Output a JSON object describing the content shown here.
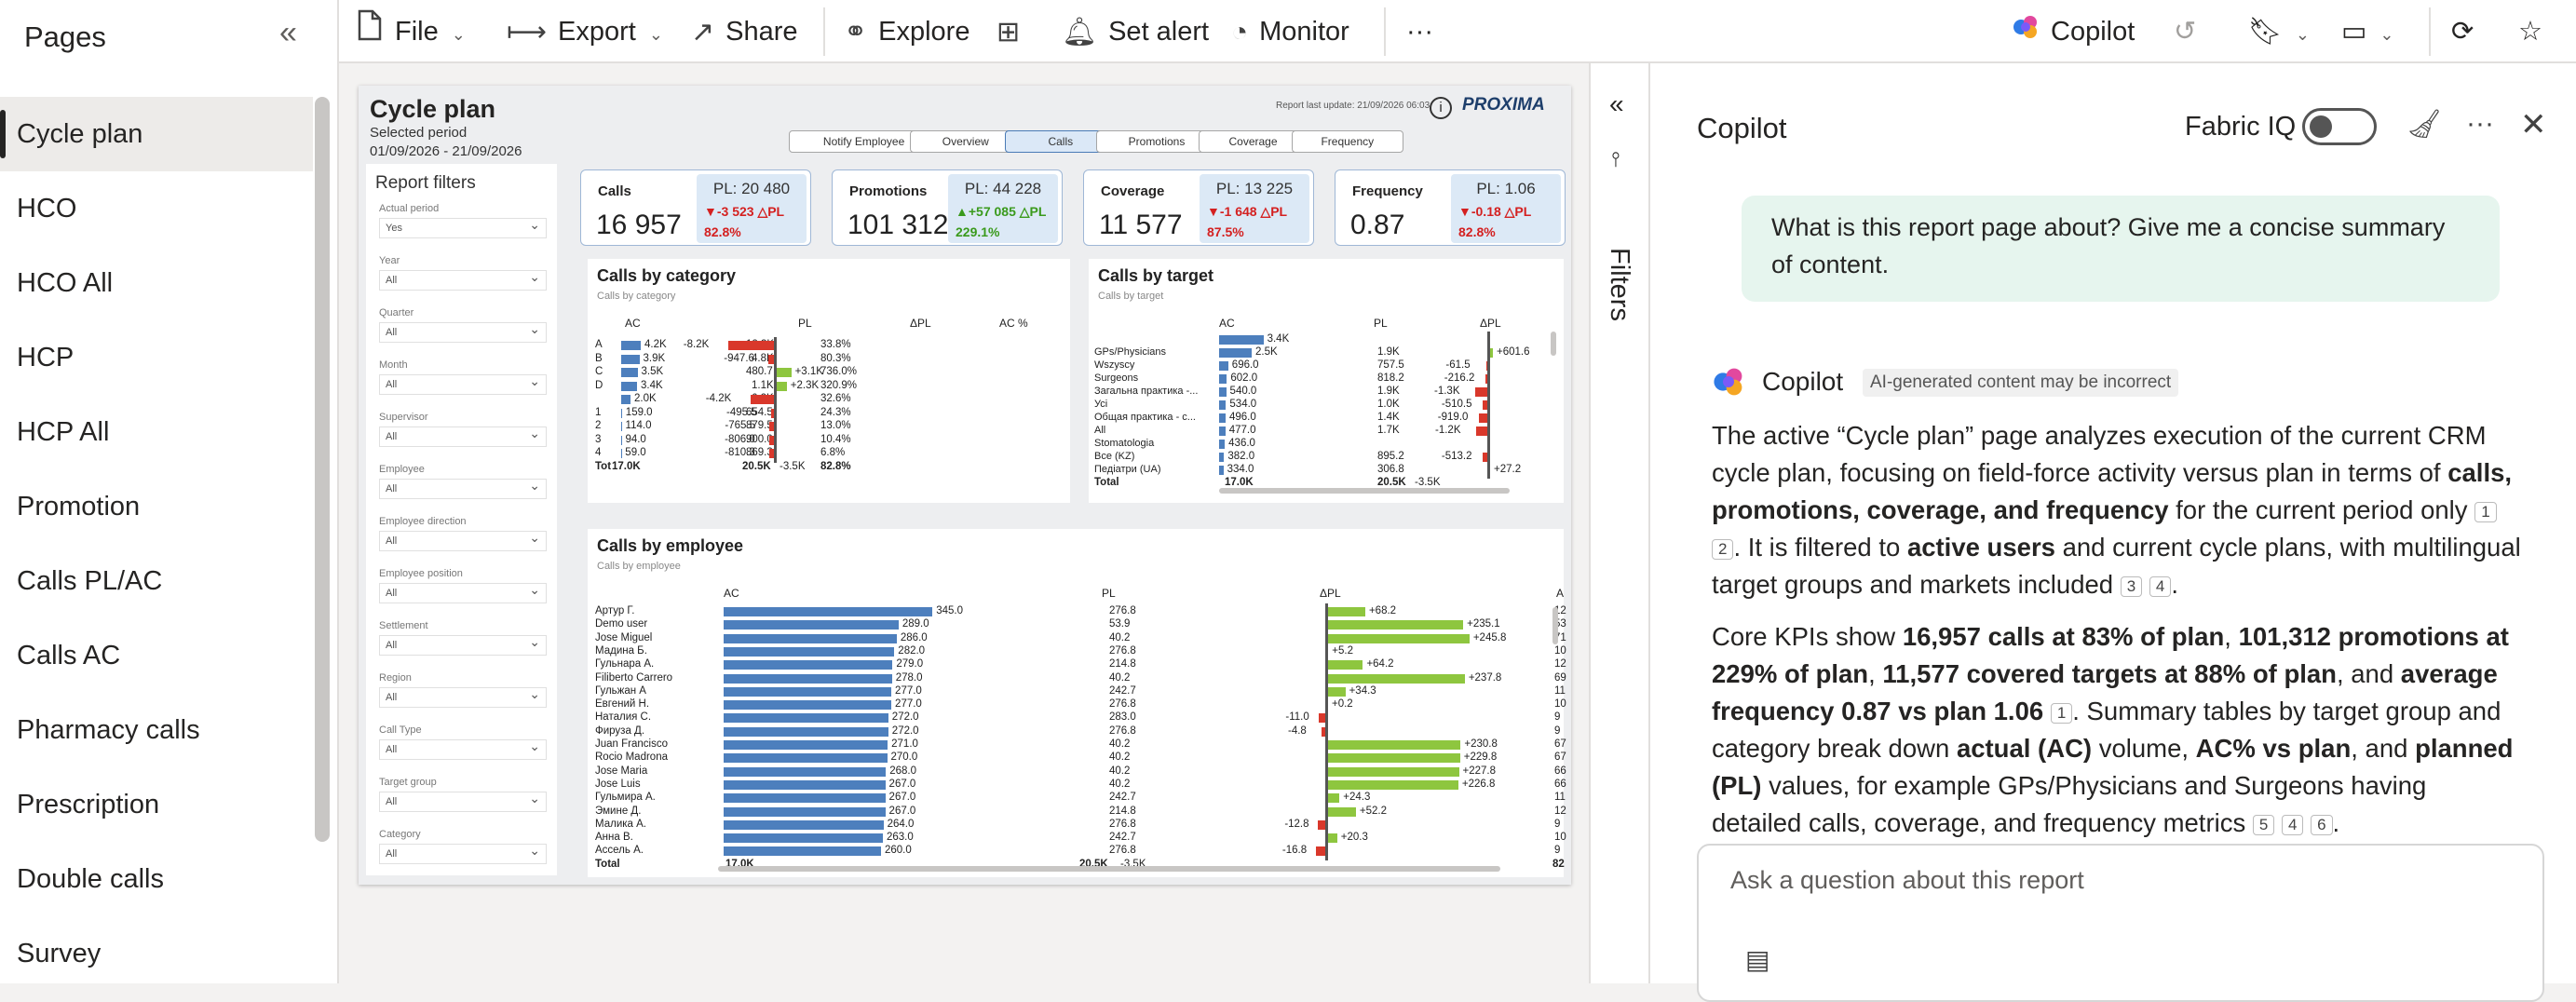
{
  "pages": {
    "title": "Pages",
    "items": [
      "Cycle plan",
      "HCO",
      "HCO All",
      "HCP",
      "HCP All",
      "Promotion",
      "Calls PL/AC",
      "Calls AC",
      "Pharmacy calls",
      "Prescription",
      "Double calls",
      "Survey"
    ]
  },
  "toolbar": {
    "file": "File",
    "export": "Export",
    "share": "Share",
    "explore": "Explore",
    "set_alert": "Set alert",
    "monitor": "Monitor",
    "copilot": "Copilot",
    "more": "···"
  },
  "report": {
    "title": "Cycle plan",
    "selected_period_label": "Selected period",
    "period": "01/09/2026 - 21/09/2026",
    "last_update": "Report last update: 21/09/2026 06:03",
    "logo": "PROXIMA",
    "nav": [
      "Notify Employee",
      "Overview",
      "Calls",
      "Promotions",
      "Coverage",
      "Frequency"
    ],
    "kpis": [
      {
        "name": "Calls",
        "value": "16 957",
        "pl": "PL: 20 480",
        "delta": "▼-3 523 △PL",
        "pct": "82.8%",
        "dir": "neg"
      },
      {
        "name": "Promotions",
        "value": "101 312",
        "pl": "PL: 44 228",
        "delta": "▲+57 085 △PL",
        "pct": "229.1%",
        "dir": "pos"
      },
      {
        "name": "Coverage",
        "value": "11 577",
        "pl": "PL: 13 225",
        "delta": "▼-1 648 △PL",
        "pct": "87.5%",
        "dir": "neg"
      },
      {
        "name": "Frequency",
        "value": "0.87",
        "pl": "PL: 1.06",
        "delta": "▼-0.18 △PL",
        "pct": "82.8%",
        "dir": "neg"
      }
    ],
    "filters": {
      "title": "Report filters",
      "items": [
        {
          "label": "Actual period",
          "value": "Yes"
        },
        {
          "label": "Year",
          "value": "All"
        },
        {
          "label": "Quarter",
          "value": "All"
        },
        {
          "label": "Month",
          "value": "All"
        },
        {
          "label": "Supervisor",
          "value": "All"
        },
        {
          "label": "Employee",
          "value": "All"
        },
        {
          "label": "Employee direction",
          "value": "All"
        },
        {
          "label": "Employee position",
          "value": "All"
        },
        {
          "label": "Settlement",
          "value": "All"
        },
        {
          "label": "Region",
          "value": "All"
        },
        {
          "label": "Call Type",
          "value": "All"
        },
        {
          "label": "Target group",
          "value": "All"
        },
        {
          "label": "Category",
          "value": "All"
        }
      ]
    },
    "by_category": {
      "title": "Calls by category",
      "subtitle": "Calls by category",
      "headers": [
        "AC",
        "PL",
        "ΔPL",
        "AC %"
      ],
      "rows": [
        {
          "label": "A",
          "ac": "4.2K",
          "acv": 4.2,
          "pl": "12.3K",
          "dpl": "-8.2K",
          "dv": -8.2,
          "pct": "33.8%"
        },
        {
          "label": "B",
          "ac": "3.9K",
          "acv": 3.9,
          "pl": "4.8K",
          "dpl": "-947.6",
          "dv": -0.95,
          "pct": "80.3%"
        },
        {
          "label": "C",
          "ac": "3.5K",
          "acv": 3.5,
          "pl": "480.7",
          "dpl": "+3.1K",
          "dv": 3.1,
          "pct": "736.0%"
        },
        {
          "label": "D",
          "ac": "3.4K",
          "acv": 3.4,
          "pl": "1.1K",
          "dpl": "+2.3K",
          "dv": 2.3,
          "pct": "320.9%"
        },
        {
          "label": "",
          "ac": "2.0K",
          "acv": 2.0,
          "pl": "6.2K",
          "dpl": "-4.2K",
          "dv": -4.2,
          "pct": "32.6%"
        },
        {
          "label": "1",
          "ac": "159.0",
          "acv": 0.16,
          "pl": "654.5",
          "dpl": "-495.5",
          "dv": -0.5,
          "pct": "24.3%"
        },
        {
          "label": "2",
          "ac": "114.0",
          "acv": 0.11,
          "pl": "879.5",
          "dpl": "-765.5",
          "dv": -0.77,
          "pct": "13.0%"
        },
        {
          "label": "3",
          "ac": "94.0",
          "acv": 0.09,
          "pl": "900.0",
          "dpl": "-806.0",
          "dv": -0.81,
          "pct": "10.4%"
        },
        {
          "label": "4",
          "ac": "59.0",
          "acv": 0.06,
          "pl": "869.3",
          "dpl": "-810.3",
          "dv": -0.81,
          "pct": "6.8%"
        }
      ],
      "total": {
        "label": "Tot",
        "ac": "17.0K",
        "pl": "20.5K",
        "dpl": "-3.5K",
        "pct": "82.8%"
      }
    },
    "by_target": {
      "title": "Calls by target",
      "subtitle": "Calls by target",
      "headers": [
        "AC",
        "PL",
        "ΔPL"
      ],
      "rows": [
        {
          "label": "",
          "ac": "3.4K",
          "acv": 3.4,
          "pl": "",
          "dpl": "",
          "dv": 0
        },
        {
          "label": "GPs/Physicians",
          "ac": "2.5K",
          "acv": 2.5,
          "pl": "1.9K",
          "dpl": "+601.6",
          "dv": 0.6
        },
        {
          "label": "Wszyscy",
          "ac": "696.0",
          "acv": 0.7,
          "pl": "757.5",
          "dpl": "-61.5",
          "dv": -0.06
        },
        {
          "label": "Surgeons",
          "ac": "602.0",
          "acv": 0.6,
          "pl": "818.2",
          "dpl": "-216.2",
          "dv": -0.22
        },
        {
          "label": "Загальна практика -...",
          "ac": "540.0",
          "acv": 0.54,
          "pl": "1.9K",
          "dpl": "-1.3K",
          "dv": -1.3
        },
        {
          "label": "Усі",
          "ac": "534.0",
          "acv": 0.53,
          "pl": "1.0K",
          "dpl": "-510.5",
          "dv": -0.51
        },
        {
          "label": "Общая практика - с...",
          "ac": "496.0",
          "acv": 0.5,
          "pl": "1.4K",
          "dpl": "-919.0",
          "dv": -0.92
        },
        {
          "label": "All",
          "ac": "477.0",
          "acv": 0.48,
          "pl": "1.7K",
          "dpl": "-1.2K",
          "dv": -1.2
        },
        {
          "label": "Stomatologia",
          "ac": "436.0",
          "acv": 0.44,
          "pl": "",
          "dpl": "",
          "dv": 0
        },
        {
          "label": "Все (KZ)",
          "ac": "382.0",
          "acv": 0.38,
          "pl": "895.2",
          "dpl": "-513.2",
          "dv": -0.51
        },
        {
          "label": "Педіатри (UA)",
          "ac": "334.0",
          "acv": 0.33,
          "pl": "306.8",
          "dpl": "+27.2",
          "dv": 0.03
        }
      ],
      "total": {
        "label": "Total",
        "ac": "17.0K",
        "pl": "20.5K",
        "dpl": "-3.5K"
      }
    },
    "by_employee": {
      "title": "Calls by employee",
      "subtitle": "Calls by employee",
      "headers": [
        "AC",
        "PL",
        "ΔPL",
        "A"
      ],
      "rows": [
        {
          "label": "Артур Г.",
          "ac": "345.0",
          "acv": 345,
          "pl": "276.8",
          "dpl": "+68.2",
          "dv": 68.2,
          "tail": "12"
        },
        {
          "label": "Demo user",
          "ac": "289.0",
          "acv": 289,
          "pl": "53.9",
          "dpl": "+235.1",
          "dv": 235.1,
          "tail": "53"
        },
        {
          "label": "Jose Miguel",
          "ac": "286.0",
          "acv": 286,
          "pl": "40.2",
          "dpl": "+245.8",
          "dv": 245.8,
          "tail": "71"
        },
        {
          "label": "Мадина Б.",
          "ac": "282.0",
          "acv": 282,
          "pl": "276.8",
          "dpl": "+5.2",
          "dv": 5.2,
          "tail": "10"
        },
        {
          "label": "Гульнара А.",
          "ac": "279.0",
          "acv": 279,
          "pl": "214.8",
          "dpl": "+64.2",
          "dv": 64.2,
          "tail": "12"
        },
        {
          "label": "Filiberto Carrero",
          "ac": "278.0",
          "acv": 278,
          "pl": "40.2",
          "dpl": "+237.8",
          "dv": 237.8,
          "tail": "69"
        },
        {
          "label": "Гульжан А",
          "ac": "277.0",
          "acv": 277,
          "pl": "242.7",
          "dpl": "+34.3",
          "dv": 34.3,
          "tail": "11"
        },
        {
          "label": "Евгений Н.",
          "ac": "277.0",
          "acv": 277,
          "pl": "276.8",
          "dpl": "+0.2",
          "dv": 0.2,
          "tail": "10"
        },
        {
          "label": "Наталия С.",
          "ac": "272.0",
          "acv": 272,
          "pl": "283.0",
          "dpl": "-11.0",
          "dv": -11,
          "tail": "9"
        },
        {
          "label": "Фируза Д.",
          "ac": "272.0",
          "acv": 272,
          "pl": "276.8",
          "dpl": "-4.8",
          "dv": -4.8,
          "tail": "9"
        },
        {
          "label": "Juan Francisco",
          "ac": "271.0",
          "acv": 271,
          "pl": "40.2",
          "dpl": "+230.8",
          "dv": 230.8,
          "tail": "67"
        },
        {
          "label": "Rocio Madrona",
          "ac": "270.0",
          "acv": 270,
          "pl": "40.2",
          "dpl": "+229.8",
          "dv": 229.8,
          "tail": "67"
        },
        {
          "label": "Jose Maria",
          "ac": "268.0",
          "acv": 268,
          "pl": "40.2",
          "dpl": "+227.8",
          "dv": 227.8,
          "tail": "66"
        },
        {
          "label": "Jose Luis",
          "ac": "267.0",
          "acv": 267,
          "pl": "40.2",
          "dpl": "+226.8",
          "dv": 226.8,
          "tail": "66"
        },
        {
          "label": "Гульмира А.",
          "ac": "267.0",
          "acv": 267,
          "pl": "242.7",
          "dpl": "+24.3",
          "dv": 24.3,
          "tail": "11"
        },
        {
          "label": "Эмине Д.",
          "ac": "267.0",
          "acv": 267,
          "pl": "214.8",
          "dpl": "+52.2",
          "dv": 52.2,
          "tail": "12"
        },
        {
          "label": "Малика А.",
          "ac": "264.0",
          "acv": 264,
          "pl": "276.8",
          "dpl": "-12.8",
          "dv": -12.8,
          "tail": "9"
        },
        {
          "label": "Анна В.",
          "ac": "263.0",
          "acv": 263,
          "pl": "242.7",
          "dpl": "+20.3",
          "dv": 20.3,
          "tail": "10"
        },
        {
          "label": "Ассель А.",
          "ac": "260.0",
          "acv": 260,
          "pl": "276.8",
          "dpl": "-16.8",
          "dv": -16.8,
          "tail": "9"
        }
      ],
      "total": {
        "label": "Total",
        "ac": "17.0K",
        "pl": "20.5K",
        "dpl": "-3.5K",
        "tail": "82"
      }
    }
  },
  "filters_pane": {
    "label": "Filters"
  },
  "copilot": {
    "title": "Copilot",
    "fabric_iq": "Fabric IQ",
    "user_question": "What is this report page about? Give me a concise summary of content.",
    "author": "Copilot",
    "disclaimer": "AI-generated content may be incorrect",
    "p1": [
      {
        "t": "The active “Cycle plan” page analyzes execution of the current CRM cycle plan, focusing on field-force activity versus plan in terms of "
      },
      {
        "t": "calls, promotions, coverage, and frequency",
        "b": true
      },
      {
        "t": " for the current period only "
      },
      {
        "c": "1"
      },
      {
        "t": " "
      },
      {
        "c": "2"
      },
      {
        "t": ". It is filtered to "
      },
      {
        "t": "active users",
        "b": true
      },
      {
        "t": " and current cycle plans, with multilingual target groups and markets included "
      },
      {
        "c": "3"
      },
      {
        "t": " "
      },
      {
        "c": "4"
      },
      {
        "t": "."
      }
    ],
    "p2": [
      {
        "t": "Core KPIs show "
      },
      {
        "t": "16,957 calls at 83% of plan",
        "b": true
      },
      {
        "t": ", "
      },
      {
        "t": "101,312 promotions at 229% of plan",
        "b": true
      },
      {
        "t": ", "
      },
      {
        "t": "11,577 covered targets at 88% of plan",
        "b": true
      },
      {
        "t": ", and "
      },
      {
        "t": "average frequency 0.87 vs plan 1.06",
        "b": true
      },
      {
        "t": " "
      },
      {
        "c": "1"
      },
      {
        "t": ". Summary tables by target group and category break down "
      },
      {
        "t": "actual (AC)",
        "b": true
      },
      {
        "t": " volume, "
      },
      {
        "t": "AC% vs plan",
        "b": true
      },
      {
        "t": ", and "
      },
      {
        "t": "planned (PL)",
        "b": true
      },
      {
        "t": " values, for example GPs/Physicians and Surgeons having detailed calls, coverage, and frequency metrics "
      },
      {
        "c": "5"
      },
      {
        "t": " "
      },
      {
        "c": "4"
      },
      {
        "t": " "
      },
      {
        "c": "6"
      },
      {
        "t": "."
      }
    ],
    "ask_placeholder": "Ask a question about this report"
  }
}
